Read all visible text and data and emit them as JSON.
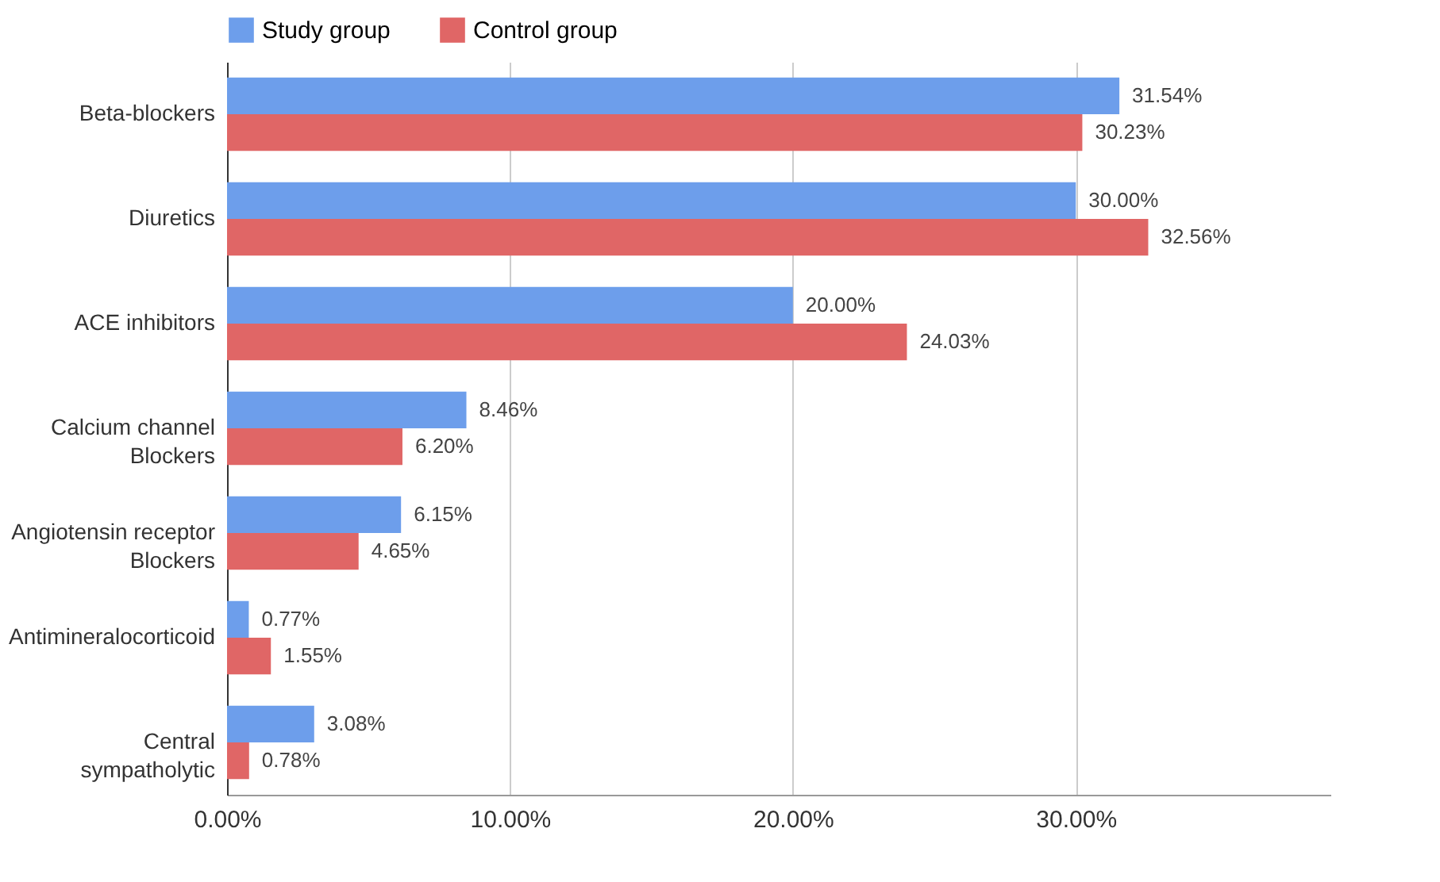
{
  "chart_data": {
    "type": "bar",
    "orientation": "horizontal",
    "categories": [
      "Beta-blockers",
      "Diuretics",
      "ACE inhibitors",
      "Calcium channel\nBlockers",
      "Angiotensin receptor\nBlockers",
      "Antimineralocorticoid",
      "Central\nsympatholytic"
    ],
    "series": [
      {
        "name": "Study group",
        "color": "#6d9eeb",
        "values": [
          31.54,
          30.0,
          20.0,
          8.46,
          6.15,
          0.77,
          3.08
        ],
        "value_labels": [
          "31.54%",
          "30.00%",
          "20.00%",
          "8.46%",
          "6.15%",
          "0.77%",
          "3.08%"
        ]
      },
      {
        "name": "Control group",
        "color": "#e06666",
        "values": [
          30.23,
          32.56,
          24.03,
          6.2,
          4.65,
          1.55,
          0.78
        ],
        "value_labels": [
          "30.23%",
          "32.56%",
          "24.03%",
          "6.20%",
          "4.65%",
          "1.55%",
          "0.78%"
        ]
      }
    ],
    "xlim": [
      0,
      39
    ],
    "xticks": [
      {
        "value": 0,
        "label": "0.00%"
      },
      {
        "value": 10,
        "label": "10.00%"
      },
      {
        "value": 20,
        "label": "20.00%"
      },
      {
        "value": 30,
        "label": "30.00%"
      }
    ],
    "grid": "x",
    "legend": "top"
  }
}
